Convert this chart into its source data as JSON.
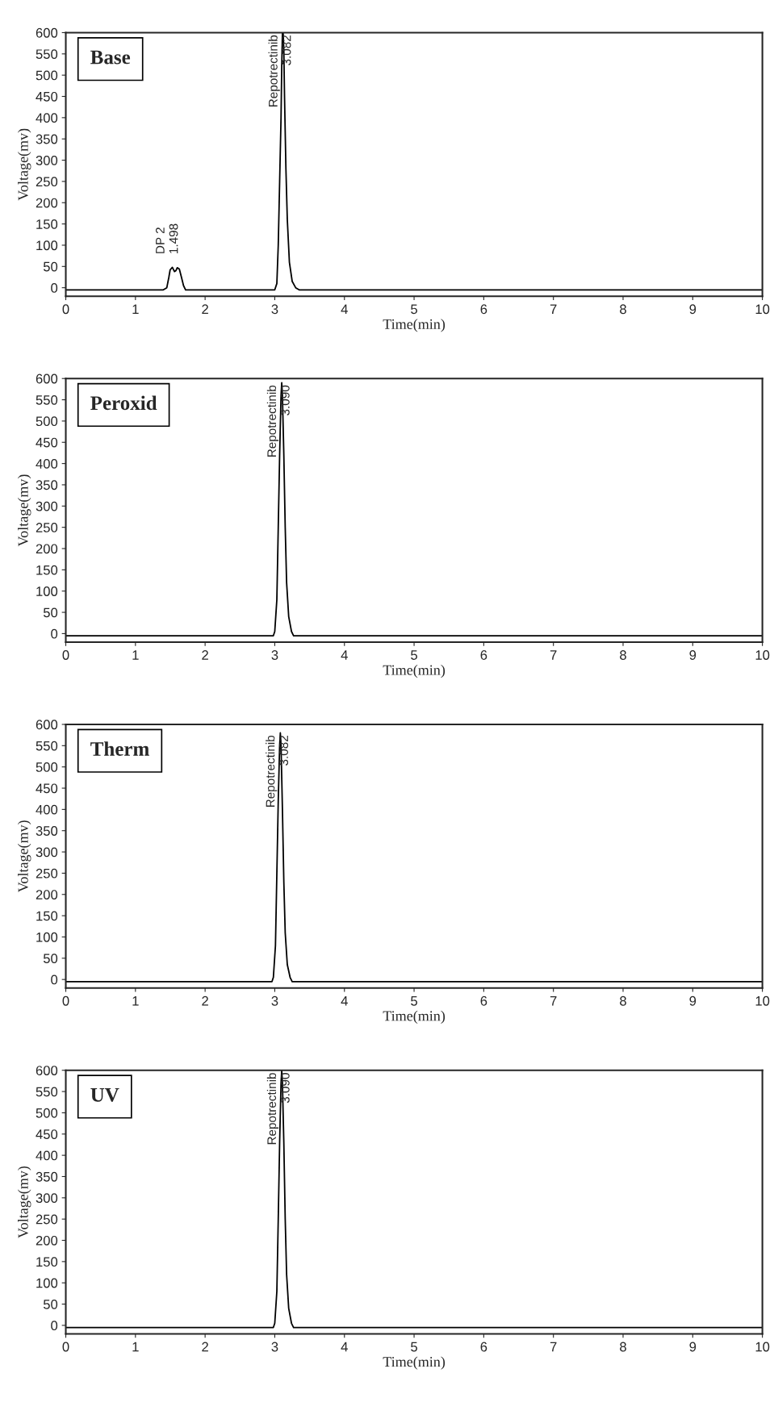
{
  "chart_data": [
    {
      "type": "line",
      "title": "Base",
      "xlabel": "Time(min)",
      "ylabel": "Voltage(mv)",
      "xlim": [
        0,
        10
      ],
      "ylim": [
        -20,
        600
      ],
      "xticks": [
        0,
        1,
        2,
        3,
        4,
        5,
        6,
        7,
        8,
        9,
        10
      ],
      "yticks": [
        0,
        50,
        100,
        150,
        200,
        250,
        300,
        350,
        400,
        450,
        500,
        550,
        600
      ],
      "grid": false,
      "legend": false,
      "marker": "none",
      "line_style": "solid",
      "series": [
        {
          "color": "#000000",
          "x": [
            0,
            1.4,
            1.45,
            1.48,
            1.498,
            1.53,
            1.56,
            1.58,
            1.6,
            1.63,
            1.66,
            1.69,
            1.72,
            3.0,
            3.03,
            3.05,
            3.07,
            3.09,
            3.1,
            3.11,
            3.12,
            3.13,
            3.14,
            3.16,
            3.18,
            3.21,
            3.25,
            3.3,
            3.35,
            10
          ],
          "values": [
            -5,
            -5,
            0,
            25,
            42,
            48,
            38,
            40,
            47,
            44,
            25,
            5,
            -5,
            -5,
            10,
            100,
            250,
            400,
            520,
            600,
            600,
            560,
            450,
            280,
            160,
            60,
            15,
            0,
            -5,
            -5
          ]
        }
      ],
      "annotations": [
        {
          "text": "DP 2",
          "x": 1.498,
          "y": 42
        },
        {
          "text": "1.498",
          "x": 1.498,
          "y": 42
        },
        {
          "text": "Repotrectinib",
          "x": 3.12,
          "y": 600
        },
        {
          "text": "3.082",
          "x": 3.12,
          "y": 600
        }
      ]
    },
    {
      "type": "line",
      "title": "Peroxid",
      "xlabel": "Time(min)",
      "ylabel": "Voltage(mv)",
      "xlim": [
        0,
        10
      ],
      "ylim": [
        -20,
        600
      ],
      "xticks": [
        0,
        1,
        2,
        3,
        4,
        5,
        6,
        7,
        8,
        9,
        10
      ],
      "yticks": [
        0,
        50,
        100,
        150,
        200,
        250,
        300,
        350,
        400,
        450,
        500,
        550,
        600
      ],
      "grid": false,
      "legend": false,
      "marker": "none",
      "line_style": "solid",
      "series": [
        {
          "color": "#000000",
          "x": [
            0,
            2.98,
            3.0,
            3.03,
            3.05,
            3.07,
            3.09,
            3.1,
            3.11,
            3.13,
            3.15,
            3.17,
            3.2,
            3.24,
            3.27,
            10
          ],
          "values": [
            -5,
            -5,
            5,
            80,
            250,
            420,
            560,
            590,
            560,
            420,
            250,
            120,
            40,
            5,
            -5,
            -5
          ]
        }
      ],
      "annotations": [
        {
          "text": "Repotrectinib",
          "x": 3.1,
          "y": 590
        },
        {
          "text": "3.090",
          "x": 3.1,
          "y": 590
        }
      ]
    },
    {
      "type": "line",
      "title": "Therm",
      "xlabel": "Time(min)",
      "ylabel": "Voltage(mv)",
      "xlim": [
        0,
        10
      ],
      "ylim": [
        -20,
        600
      ],
      "xticks": [
        0,
        1,
        2,
        3,
        4,
        5,
        6,
        7,
        8,
        9,
        10
      ],
      "yticks": [
        0,
        50,
        100,
        150,
        200,
        250,
        300,
        350,
        400,
        450,
        500,
        550,
        600
      ],
      "grid": false,
      "legend": false,
      "marker": "none",
      "line_style": "solid",
      "series": [
        {
          "color": "#000000",
          "x": [
            0,
            2.96,
            2.98,
            3.01,
            3.03,
            3.05,
            3.07,
            3.08,
            3.09,
            3.11,
            3.13,
            3.15,
            3.18,
            3.22,
            3.25,
            10
          ],
          "values": [
            -5,
            -5,
            5,
            80,
            250,
            420,
            550,
            580,
            550,
            400,
            230,
            110,
            35,
            5,
            -5,
            -5
          ]
        }
      ],
      "annotations": [
        {
          "text": "Repotrectinib",
          "x": 3.08,
          "y": 580
        },
        {
          "text": "3.082",
          "x": 3.08,
          "y": 580
        }
      ]
    },
    {
      "type": "line",
      "title": "UV",
      "xlabel": "Time(min)",
      "ylabel": "Voltage(mv)",
      "xlim": [
        0,
        10
      ],
      "ylim": [
        -20,
        600
      ],
      "xticks": [
        0,
        1,
        2,
        3,
        4,
        5,
        6,
        7,
        8,
        9,
        10
      ],
      "yticks": [
        0,
        50,
        100,
        150,
        200,
        250,
        300,
        350,
        400,
        450,
        500,
        550,
        600
      ],
      "grid": false,
      "legend": false,
      "marker": "none",
      "line_style": "solid",
      "series": [
        {
          "color": "#000000",
          "x": [
            0,
            2.98,
            3.0,
            3.03,
            3.05,
            3.07,
            3.09,
            3.1,
            3.11,
            3.13,
            3.15,
            3.17,
            3.2,
            3.24,
            3.27,
            10
          ],
          "values": [
            -5,
            -5,
            5,
            80,
            250,
            430,
            570,
            600,
            570,
            430,
            250,
            120,
            40,
            5,
            -5,
            -5
          ]
        }
      ],
      "annotations": [
        {
          "text": "Repotrectinib",
          "x": 3.1,
          "y": 600
        },
        {
          "text": "3.090",
          "x": 3.1,
          "y": 600
        }
      ]
    }
  ]
}
